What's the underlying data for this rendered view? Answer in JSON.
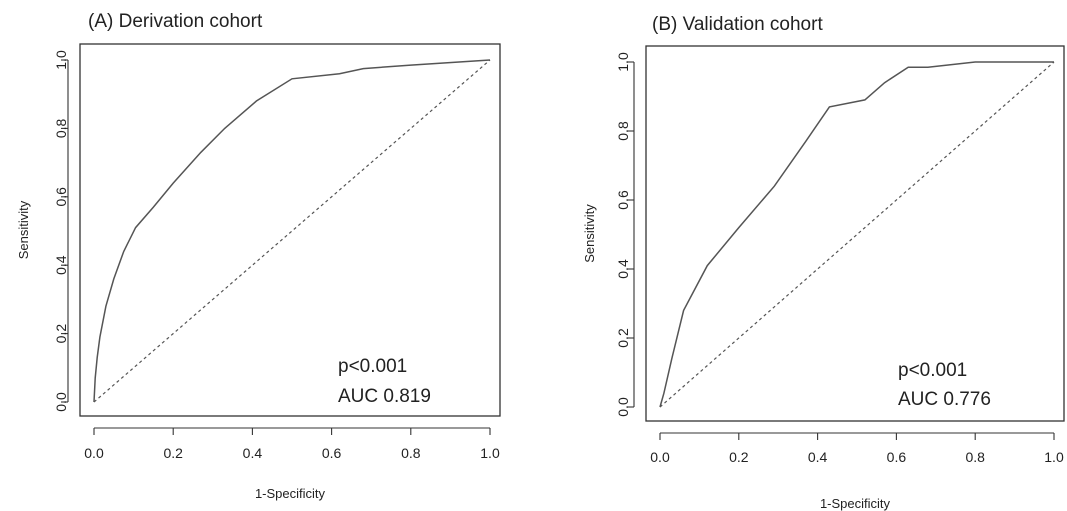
{
  "chart_data": [
    {
      "type": "line",
      "title": "(A) Derivation cohort",
      "xlabel": "1-Specificity",
      "ylabel": "Sensitivity",
      "xlim": [
        0,
        1
      ],
      "ylim": [
        0,
        1
      ],
      "xticks": [
        "0.0",
        "0.2",
        "0.4",
        "0.6",
        "0.8",
        "1.0"
      ],
      "yticks": [
        "0.0",
        "0.2",
        "0.4",
        "0.6",
        "0.8",
        "1.0"
      ],
      "series": [
        {
          "style": "solid",
          "x": [
            0.0,
            0.003,
            0.008,
            0.015,
            0.03,
            0.05,
            0.075,
            0.105,
            0.15,
            0.2,
            0.27,
            0.33,
            0.41,
            0.5,
            0.62,
            0.68,
            0.8,
            1.0
          ],
          "y": [
            0.0,
            0.07,
            0.13,
            0.19,
            0.28,
            0.36,
            0.44,
            0.51,
            0.57,
            0.64,
            0.73,
            0.8,
            0.88,
            0.945,
            0.96,
            0.975,
            0.985,
            1.0
          ]
        },
        {
          "style": "dashed",
          "x": [
            0,
            1
          ],
          "y": [
            0,
            1
          ]
        }
      ],
      "annotations": [
        "p<0.001",
        "AUC 0.819"
      ],
      "grid": false
    },
    {
      "type": "line",
      "title": "(B) Validation cohort",
      "xlabel": "1-Specificity",
      "ylabel": "Sensitivity",
      "xlim": [
        0,
        1
      ],
      "ylim": [
        0,
        1
      ],
      "xticks": [
        "0.0",
        "0.2",
        "0.4",
        "0.6",
        "0.8",
        "1.0"
      ],
      "yticks": [
        "0.0",
        "0.2",
        "0.4",
        "0.6",
        "0.8",
        "1.0"
      ],
      "series": [
        {
          "style": "solid",
          "x": [
            0.0,
            0.01,
            0.03,
            0.06,
            0.12,
            0.2,
            0.29,
            0.37,
            0.43,
            0.52,
            0.57,
            0.63,
            0.68,
            0.8,
            1.0
          ],
          "y": [
            0.0,
            0.04,
            0.14,
            0.28,
            0.41,
            0.52,
            0.64,
            0.77,
            0.87,
            0.89,
            0.94,
            0.985,
            0.985,
            1.0,
            1.0
          ]
        },
        {
          "style": "dashed",
          "x": [
            0,
            1
          ],
          "y": [
            0,
            1
          ]
        }
      ],
      "annotations": [
        "p<0.001",
        "AUC 0.776"
      ],
      "grid": false
    }
  ]
}
